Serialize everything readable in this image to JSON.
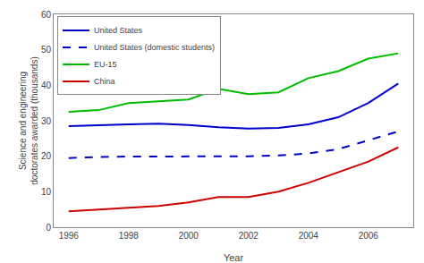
{
  "chart_data": {
    "type": "line",
    "x": [
      1996,
      1997,
      1998,
      1999,
      2000,
      2001,
      2002,
      2003,
      2004,
      2005,
      2006,
      2007
    ],
    "series": [
      {
        "name": "United States",
        "color": "#0000CC",
        "line_style": "solid",
        "values": [
          28.5,
          28.8,
          29.0,
          29.2,
          28.8,
          28.2,
          27.8,
          28.0,
          29.0,
          31.0,
          35.0,
          40.5
        ]
      },
      {
        "name": "United States (domestic students)",
        "color": "#0000CC",
        "line_style": "dashed",
        "values": [
          19.5,
          19.8,
          19.9,
          19.9,
          19.9,
          20.0,
          20.0,
          20.2,
          20.8,
          22.0,
          24.5,
          27.0
        ]
      },
      {
        "name": "EU-15",
        "color": "#00BB00",
        "line_style": "solid",
        "values": [
          32.5,
          33.0,
          35.0,
          35.5,
          36.0,
          39.0,
          37.5,
          38.0,
          42.0,
          44.0,
          47.5,
          49.0
        ]
      },
      {
        "name": "China",
        "color": "#CC0000",
        "line_style": "solid",
        "values": [
          4.5,
          5.0,
          5.5,
          6.0,
          7.0,
          8.5,
          8.5,
          10.0,
          12.5,
          15.5,
          18.5,
          22.5
        ]
      }
    ],
    "xlabel": "Year",
    "ylabel": "Science and engineering\ndoctorates awarded (thousands)",
    "xlim": [
      1995.5,
      2007.5
    ],
    "xticks": [
      1996,
      1998,
      2000,
      2002,
      2004,
      2006
    ],
    "ylim": [
      0,
      60
    ],
    "yticks": [
      0,
      10,
      20,
      30,
      40,
      50,
      60
    ],
    "grid": false,
    "legend": "upper left"
  }
}
